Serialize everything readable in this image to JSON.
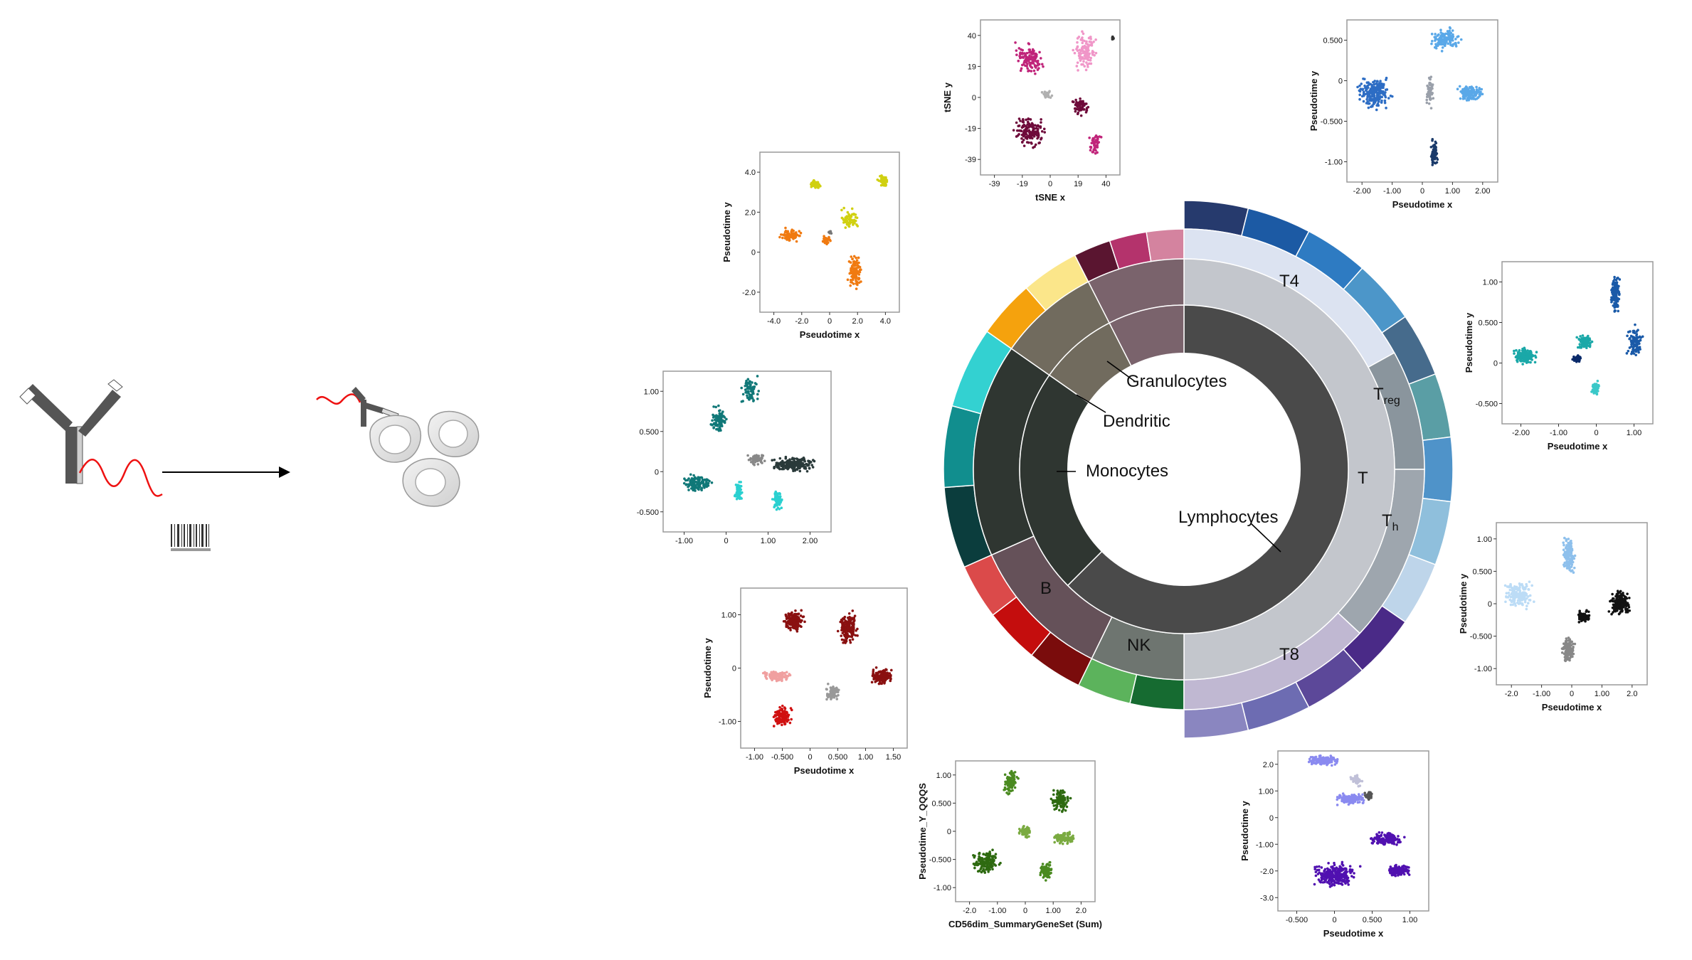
{
  "sunburst": {
    "labels": {
      "lymphocytes": "Lymphocytes",
      "monocytes": "Monocytes",
      "dendritic": "Dendritic",
      "granulocytes": "Granulocytes",
      "t": "T",
      "b": "B",
      "nk": "NK",
      "t4": "T4",
      "t8": "T8",
      "treg_main": "T",
      "treg_sub": "reg",
      "th_main": "T",
      "th_sub": "h"
    },
    "inner": [
      {
        "name": "lymphocytes",
        "start": 0,
        "end": 225,
        "color": "#4a4a4a"
      },
      {
        "name": "monocytes",
        "start": 225,
        "end": 305,
        "color": "#2f3631"
      },
      {
        "name": "dendritic",
        "start": 305,
        "end": 333,
        "color": "#716b5e"
      },
      {
        "name": "granulocytes",
        "start": 333,
        "end": 360,
        "color": "#7a636c"
      }
    ],
    "middle": [
      {
        "name": "t",
        "start": 0,
        "end": 180,
        "color": "#c3c6cc"
      },
      {
        "name": "nk",
        "start": 180,
        "end": 206,
        "color": "#6e7570"
      },
      {
        "name": "b",
        "start": 206,
        "end": 246,
        "color": "#655159"
      },
      {
        "name": "monocytes",
        "start": 246,
        "end": 305,
        "color": "#2f3631"
      },
      {
        "name": "dendritic",
        "start": 305,
        "end": 333,
        "color": "#716b5e"
      },
      {
        "name": "granulocytes",
        "start": 333,
        "end": 360,
        "color": "#7a636c"
      }
    ],
    "outer": [
      {
        "name": "t4",
        "start": 0,
        "end": 61,
        "color": "#dce3f1"
      },
      {
        "name": "treg",
        "start": 61,
        "end": 90,
        "color": "#8a959d"
      },
      {
        "name": "th",
        "start": 90,
        "end": 133,
        "color": "#9ea6ae"
      },
      {
        "name": "t8",
        "start": 133,
        "end": 180,
        "color": "#c0b8d2"
      }
    ],
    "rim": [
      "#263a6d",
      "#1c5aa4",
      "#2e7bc2",
      "#4c96c9",
      "#466b8c",
      "#5a9ea5",
      "#4f93c9",
      "#8fbfdc",
      "#bed5ea",
      "#4a2a87",
      "#5c4899",
      "#6d6cb2",
      "#8a86c0",
      "#166b31",
      "#5cb35c",
      "#7a0c0c",
      "#c40d0d",
      "#db4a4a",
      "#0b3d3d",
      "#118e8e",
      "#33d1d1",
      "#f5a20d",
      "#fbe68a",
      "#5a1530",
      "#b4336c",
      "#d4839f"
    ]
  },
  "plots": [
    {
      "id": "tsne",
      "xlabel": "tSNE x",
      "ylabel": "tSNE y",
      "xticks": [
        "-39",
        "-19",
        "0",
        "19",
        "40"
      ],
      "yticks": [
        "40",
        "19",
        "0",
        "-19",
        "-39"
      ],
      "colors": [
        "#c0247a",
        "#f096c8",
        "#6e0a3a",
        "#b0b0b0",
        "#333333"
      ]
    },
    {
      "id": "t4plot",
      "xlabel": "Pseudotime x",
      "ylabel": "Pseudotime y",
      "xticks": [
        "-2.00",
        "-1.00",
        "0",
        "1.00",
        "2.00"
      ],
      "yticks": [
        "0.500",
        "0",
        "-0.500",
        "-1.00"
      ],
      "colors": [
        "#2d6dc4",
        "#5aa8e8",
        "#1a3a6a",
        "#9aa0aa"
      ]
    },
    {
      "id": "tregplot",
      "xlabel": "Pseudotime x",
      "ylabel": "Pseudotime y",
      "xticks": [
        "-2.00",
        "-1.00",
        "0",
        "1.00"
      ],
      "yticks": [
        "1.00",
        "0.500",
        "0",
        "-0.500"
      ],
      "colors": [
        "#1aa8a8",
        "#1a5aa8",
        "#0a2a6a",
        "#3ac8c8"
      ]
    },
    {
      "id": "thplot",
      "xlabel": "Pseudotime x",
      "ylabel": "Pseudotime y",
      "xticks": [
        "-2.0",
        "-1.00",
        "0",
        "1.00",
        "2.0"
      ],
      "yticks": [
        "1.00",
        "0.500",
        "0",
        "-0.500",
        "-1.00"
      ],
      "colors": [
        "#bcdcf6",
        "#8ec0ec",
        "#111111",
        "#888888"
      ]
    },
    {
      "id": "t8plot",
      "xlabel": "Pseudotime x",
      "ylabel": "Pseudotime y",
      "xticks": [
        "-0.500",
        "0",
        "0.500",
        "1.00"
      ],
      "yticks": [
        "2.0",
        "1.00",
        "0",
        "-1.00",
        "-2.0",
        "-3.0"
      ],
      "colors": [
        "#8a8af0",
        "#5010b0",
        "#c0c0d8",
        "#555555"
      ]
    },
    {
      "id": "nkplot",
      "xlabel": "CD56dim_SummaryGeneSet (Sum)",
      "ylabel": "Pseudotime_Y_QQQS",
      "xticks": [
        "-2.0",
        "-1.00",
        "0",
        "1.00",
        "2.0"
      ],
      "yticks": [
        "1.00",
        "0.500",
        "0",
        "-0.500",
        "-1.00"
      ],
      "colors": [
        "#2e6a10",
        "#4a8a20",
        "#7aaa40"
      ]
    },
    {
      "id": "bplot",
      "xlabel": "Pseudotime x",
      "ylabel": "Pseudotime y",
      "xticks": [
        "-1.00",
        "-0.500",
        "0",
        "0.500",
        "1.00",
        "1.50"
      ],
      "yticks": [
        "1.00",
        "0",
        "-1.00"
      ],
      "colors": [
        "#8a1010",
        "#f0a0a0",
        "#d01010",
        "#999999"
      ]
    },
    {
      "id": "monoplot",
      "xlabel": "",
      "ylabel": "",
      "xticks": [
        "-1.00",
        "0",
        "1.00",
        "2.00"
      ],
      "yticks": [
        "1.00",
        "0.500",
        "0",
        "-0.500"
      ],
      "colors": [
        "#107878",
        "#2ad0d0",
        "#2a3a3a",
        "#888888"
      ]
    },
    {
      "id": "dcplot",
      "xlabel": "Pseudotime x",
      "ylabel": "Pseudotime y",
      "xticks": [
        "-4.0",
        "-2.0",
        "0",
        "2.0",
        "4.0"
      ],
      "yticks": [
        "4.0",
        "2.0",
        "0",
        "-2.0"
      ],
      "colors": [
        "#f07a10",
        "#d0d010",
        "#777777"
      ]
    }
  ]
}
